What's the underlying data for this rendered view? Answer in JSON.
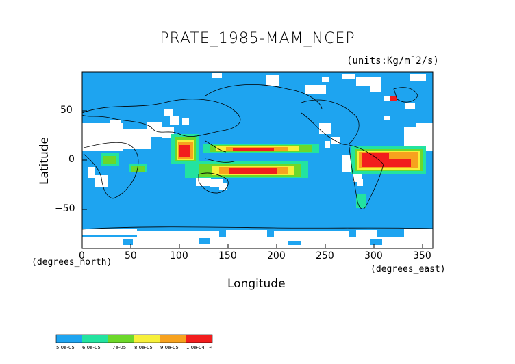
{
  "title": "PRATE_1985-MAM_NCEP",
  "units": "(units:Kg/m¯2/s)",
  "chart_data": {
    "type": "heatmap",
    "title": "PRATE_1985-MAM_NCEP",
    "xlabel": "Longitude",
    "ylabel": "Latitude",
    "x_units": "(degrees_east)",
    "y_units": "(degrees_north)",
    "xlim": [
      0,
      360
    ],
    "ylim": [
      -90,
      90
    ],
    "x_ticks": [
      "0",
      "50",
      "100",
      "150",
      "200",
      "250",
      "300",
      "350"
    ],
    "y_ticks": [
      "50",
      "0",
      "−50"
    ],
    "legend": {
      "labels": [
        "5.0e-05",
        "6.0e-05",
        "7e-05",
        "8.0e-05",
        "9.0e-05",
        "1.0e-04",
        "∞"
      ],
      "colors": [
        "#1ea4f0",
        "#23e3a0",
        "#6cd82a",
        "#f7f03a",
        "#f7a21e",
        "#f21d1d"
      ]
    },
    "colors": {
      "background": "#ffffff",
      "base": "#1ea4f0",
      "level2": "#23e3a0",
      "level3": "#6cd82a",
      "level4": "#f7f03a",
      "level5": "#f7a21e",
      "level6": "#f21d1d"
    }
  }
}
